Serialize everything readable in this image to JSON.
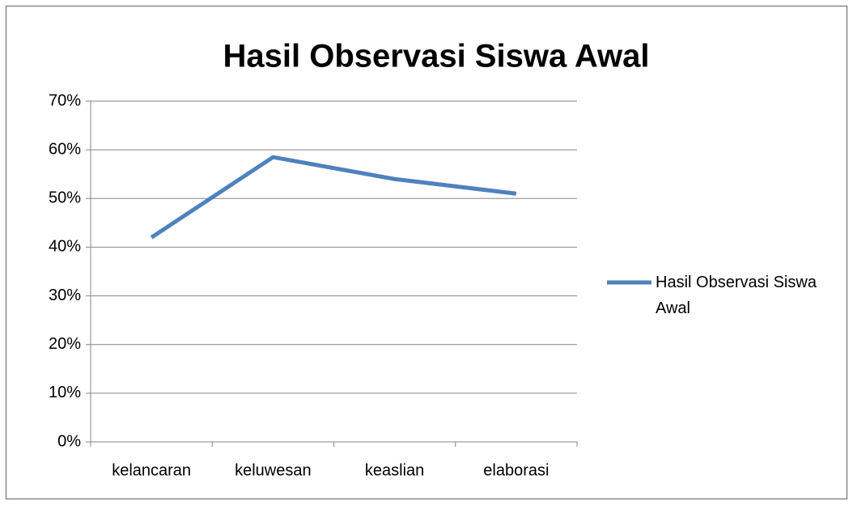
{
  "chart_data": {
    "type": "line",
    "title": "Hasil Observasi Siswa Awal",
    "categories": [
      "kelancaran",
      "keluwesan",
      "keaslian",
      "elaborasi"
    ],
    "series": [
      {
        "name": "Hasil Observasi Siswa Awal",
        "color": "#4f81bd",
        "values": [
          42,
          58.5,
          54,
          51
        ]
      }
    ],
    "ylim": [
      0,
      70
    ],
    "yticks": [
      {
        "value": 0,
        "label": "0%"
      },
      {
        "value": 10,
        "label": "10%"
      },
      {
        "value": 20,
        "label": "20%"
      },
      {
        "value": 30,
        "label": "30%"
      },
      {
        "value": 40,
        "label": "40%"
      },
      {
        "value": 50,
        "label": "50%"
      },
      {
        "value": 60,
        "label": "60%"
      },
      {
        "value": 70,
        "label": "70%"
      }
    ],
    "grid": true,
    "legend": "right"
  }
}
